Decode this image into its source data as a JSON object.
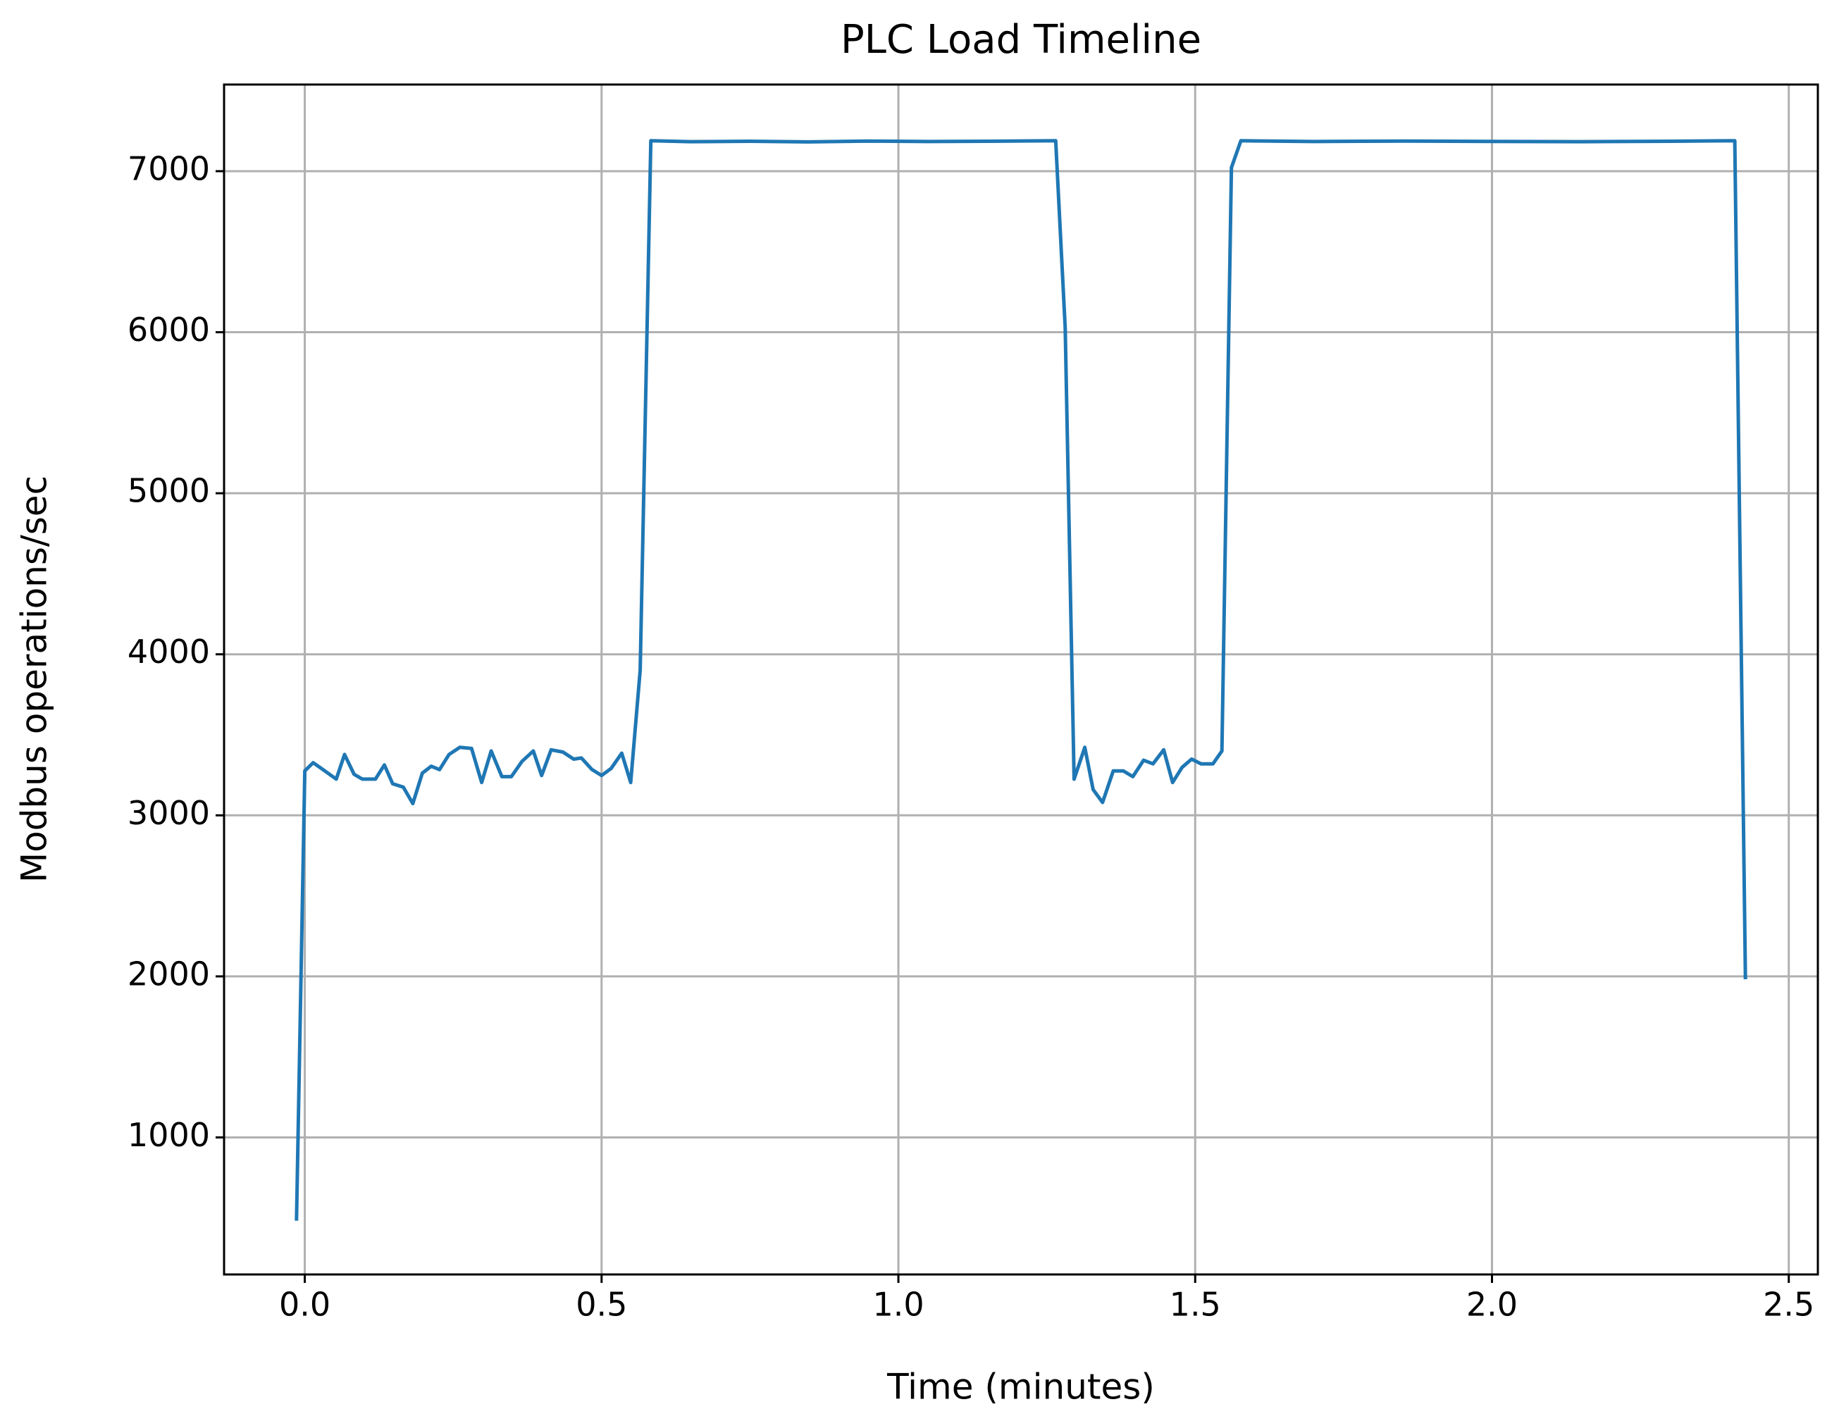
{
  "chart_data": {
    "type": "line",
    "title": "PLC Load Timeline",
    "x_label": "Time (minutes)",
    "y_label": "Modbus operations/sec",
    "xlim": [
      -0.136,
      2.549
    ],
    "ylim": [
      149,
      7538
    ],
    "xticks": [
      {
        "value": 0,
        "label": "0.0"
      },
      0.5,
      {
        "value": 1,
        "label": "1.0"
      },
      1.5,
      {
        "value": 2,
        "label": "2.0"
      },
      2.5
    ],
    "yticks": [
      1000,
      2000,
      3000,
      4000,
      5000,
      6000,
      7000
    ],
    "grid": true,
    "x": [
      -0.014,
      0,
      0.014,
      0.028,
      0.053,
      0.067,
      0.083,
      0.097,
      0.119,
      0.134,
      0.148,
      0.166,
      0.182,
      0.198,
      0.213,
      0.227,
      0.243,
      0.261,
      0.281,
      0.298,
      0.314,
      0.332,
      0.348,
      0.366,
      0.385,
      0.399,
      0.415,
      0.435,
      0.453,
      0.466,
      0.484,
      0.5,
      0.516,
      0.534,
      0.549,
      0.565,
      0.583,
      0.65,
      0.75,
      0.85,
      0.95,
      1.05,
      1.15,
      1.265,
      1.281,
      1.296,
      1.314,
      1.328,
      1.344,
      1.362,
      1.379,
      1.395,
      1.413,
      1.429,
      1.447,
      1.462,
      1.478,
      1.494,
      1.51,
      1.53,
      1.545,
      1.561,
      1.577,
      1.7,
      1.85,
      2.0,
      2.15,
      2.3,
      2.409,
      2.427
    ],
    "series": [
      {
        "name": "Modbus operations/sec",
        "color": "#1f77b4",
        "values": [
          483,
          3276,
          3327,
          3291,
          3225,
          3378,
          3255,
          3225,
          3225,
          3313,
          3196,
          3175,
          3073,
          3262,
          3305,
          3284,
          3378,
          3422,
          3415,
          3204,
          3400,
          3240,
          3240,
          3335,
          3400,
          3247,
          3407,
          3393,
          3349,
          3356,
          3284,
          3247,
          3291,
          3386,
          3204,
          3902,
          7189,
          7183,
          7186,
          7182,
          7187,
          7184,
          7186,
          7189,
          6025,
          3225,
          3422,
          3160,
          3080,
          3276,
          3276,
          3240,
          3342,
          3320,
          3407,
          3204,
          3298,
          3349,
          3320,
          3320,
          3400,
          7022,
          7189,
          7184,
          7187,
          7185,
          7183,
          7186,
          7189,
          1982
        ]
      }
    ]
  }
}
